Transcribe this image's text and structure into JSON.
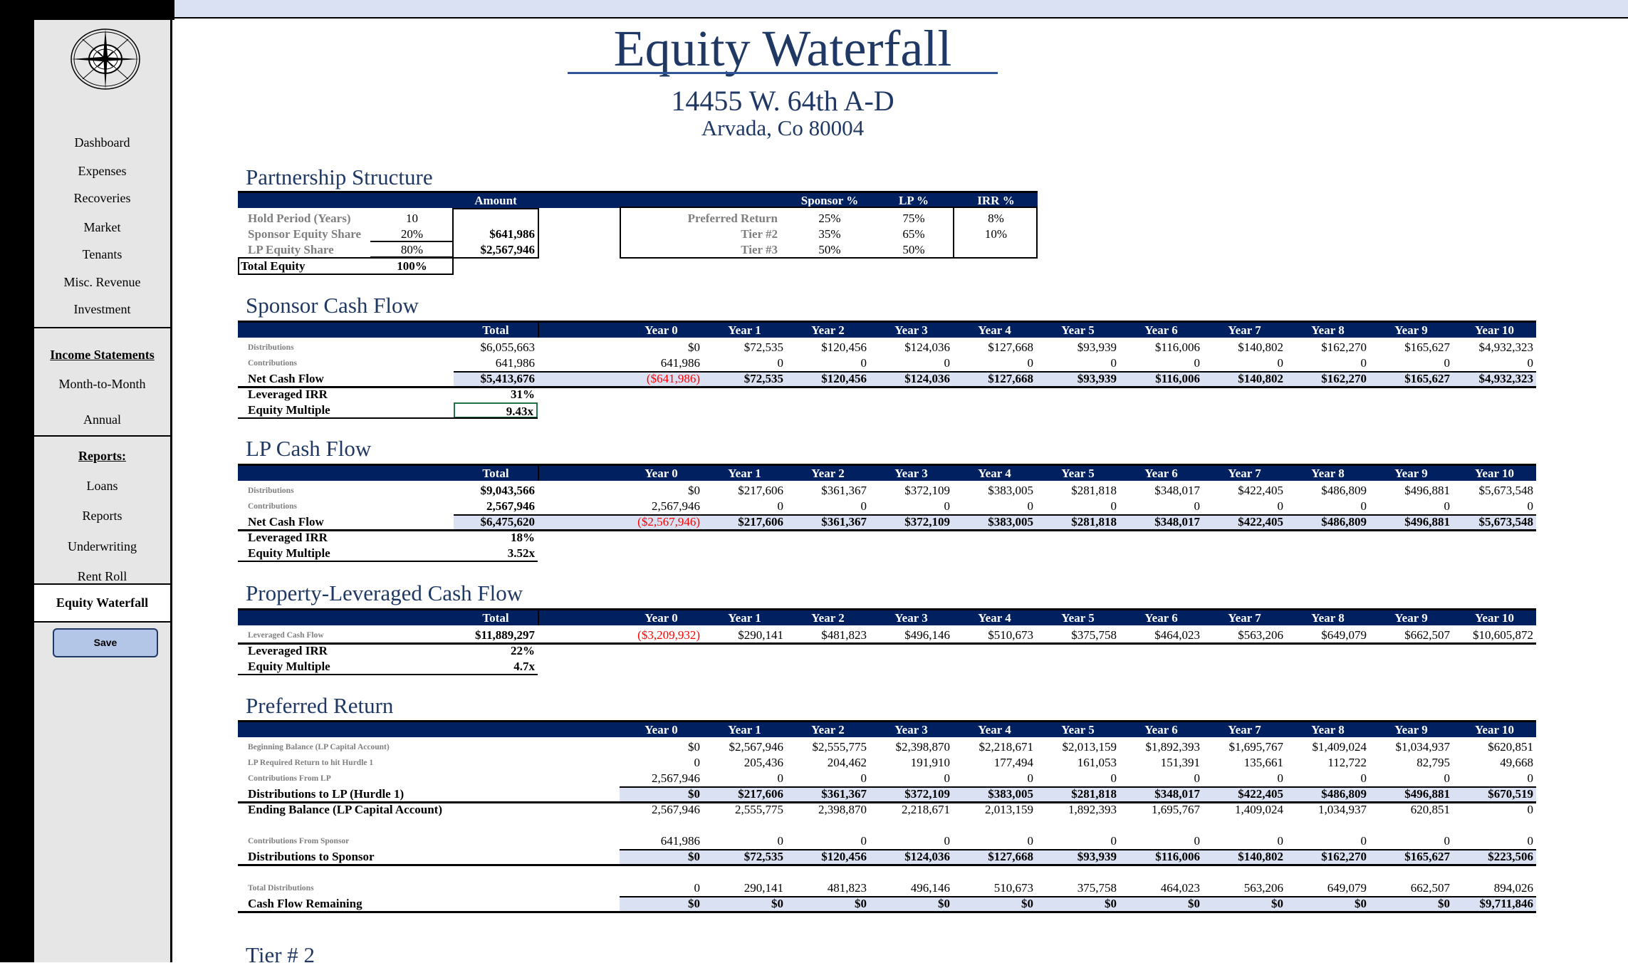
{
  "sidebar": {
    "items": [
      {
        "label": "Dashboard",
        "type": "link"
      },
      {
        "label": "Expenses",
        "type": "link"
      },
      {
        "label": "Recoveries",
        "type": "link"
      },
      {
        "label": "Market",
        "type": "link"
      },
      {
        "label": "Tenants",
        "type": "link"
      },
      {
        "label": "Misc. Revenue",
        "type": "link"
      },
      {
        "label": "Investment",
        "type": "link"
      },
      {
        "label": "Income Statements",
        "type": "head"
      },
      {
        "label": "Month-to-Month",
        "type": "link"
      },
      {
        "label": "Annual",
        "type": "link"
      },
      {
        "label": "Reports:",
        "type": "head"
      },
      {
        "label": "Loans",
        "type": "link"
      },
      {
        "label": "Reports",
        "type": "link"
      },
      {
        "label": "Underwriting",
        "type": "link"
      },
      {
        "label": "Rent Roll",
        "type": "link"
      },
      {
        "label": "Equity Waterfall",
        "type": "active"
      }
    ],
    "save_label": "Save"
  },
  "header": {
    "title": "Equity Waterfall",
    "address": "14455 W. 64th A-D",
    "city": "Arvada, Co 80004"
  },
  "colors": {
    "navy": "#002060",
    "shade": "#dae1f2",
    "title": "#1f3864",
    "negative": "#ff0000"
  },
  "partnership": {
    "title": "Partnership Structure",
    "amount_header": "Amount",
    "sponsor_header": "Sponsor %",
    "lp_header": "LP %",
    "irr_header": "IRR %",
    "left": [
      {
        "label": "Hold Period (Years)",
        "value": "10",
        "amount": ""
      },
      {
        "label": "Sponsor Equity Share",
        "value": "20%",
        "amount": "$641,986"
      },
      {
        "label": "LP Equity Share",
        "value": "80%",
        "amount": "$2,567,946"
      }
    ],
    "total": {
      "label": "Total Equity",
      "value": "100%"
    },
    "right": [
      {
        "label": "Preferred Return",
        "sponsor": "25%",
        "lp": "75%",
        "irr": "8%"
      },
      {
        "label": "Tier #2",
        "sponsor": "35%",
        "lp": "65%",
        "irr": "10%"
      },
      {
        "label": "Tier #3",
        "sponsor": "50%",
        "lp": "50%",
        "irr": ""
      }
    ]
  },
  "years": [
    "Year 0",
    "Year 1",
    "Year 2",
    "Year 3",
    "Year 4",
    "Year 5",
    "Year 6",
    "Year 7",
    "Year 8",
    "Year 9",
    "Year 10"
  ],
  "total_header": "Total",
  "sponsor_cf": {
    "title": "Sponsor Cash Flow",
    "rows": [
      {
        "label": "Distributions",
        "style": "minor",
        "total": "$6,055,663",
        "values": [
          "$0",
          "$72,535",
          "$120,456",
          "$124,036",
          "$127,668",
          "$93,939",
          "$116,006",
          "$140,802",
          "$162,270",
          "$165,627",
          "$4,932,323"
        ]
      },
      {
        "label": "Contributions",
        "style": "minor",
        "total": "641,986",
        "values": [
          "641,986",
          "0",
          "0",
          "0",
          "0",
          "0",
          "0",
          "0",
          "0",
          "0",
          "0"
        ]
      },
      {
        "label": "Net Cash Flow",
        "style": "net",
        "total": "$5,413,676",
        "values": [
          "($641,986)",
          "$72,535",
          "$120,456",
          "$124,036",
          "$127,668",
          "$93,939",
          "$116,006",
          "$140,802",
          "$162,270",
          "$165,627",
          "$4,932,323"
        ]
      },
      {
        "label": "Leveraged IRR",
        "style": "metric",
        "total": "31%"
      },
      {
        "label": "Equity Multiple",
        "style": "metric-last",
        "total": "9.43x",
        "selected": true
      }
    ]
  },
  "lp_cf": {
    "title": "LP Cash Flow",
    "rows": [
      {
        "label": "Distributions",
        "style": "minor",
        "total": "$9,043,566",
        "total_bold": true,
        "values": [
          "$0",
          "$217,606",
          "$361,367",
          "$372,109",
          "$383,005",
          "$281,818",
          "$348,017",
          "$422,405",
          "$486,809",
          "$496,881",
          "$5,673,548"
        ]
      },
      {
        "label": "Contributions",
        "style": "minor",
        "total": "2,567,946",
        "total_bold": true,
        "values": [
          "2,567,946",
          "0",
          "0",
          "0",
          "0",
          "0",
          "0",
          "0",
          "0",
          "0",
          "0"
        ]
      },
      {
        "label": "Net Cash Flow",
        "style": "net",
        "total": "$6,475,620",
        "values": [
          "($2,567,946)",
          "$217,606",
          "$361,367",
          "$372,109",
          "$383,005",
          "$281,818",
          "$348,017",
          "$422,405",
          "$486,809",
          "$496,881",
          "$5,673,548"
        ]
      },
      {
        "label": "Leveraged IRR",
        "style": "metric",
        "total": "18%"
      },
      {
        "label": "Equity Multiple",
        "style": "metric-last",
        "total": "3.52x"
      }
    ]
  },
  "property_cf": {
    "title": "Property-Leveraged Cash Flow",
    "rows": [
      {
        "label": "Leveraged Cash Flow",
        "style": "minor-thick",
        "total": "$11,889,297",
        "total_bold": true,
        "values": [
          "($3,209,932)",
          "$290,141",
          "$481,823",
          "$496,146",
          "$510,673",
          "$375,758",
          "$464,023",
          "$563,206",
          "$649,079",
          "$662,507",
          "$10,605,872"
        ]
      },
      {
        "label": "Leveraged IRR",
        "style": "metric",
        "total": "22%"
      },
      {
        "label": "Equity Multiple",
        "style": "metric-last",
        "total": "4.7x"
      }
    ]
  },
  "preferred_return": {
    "title": "Preferred Return",
    "rows": [
      {
        "label": "Beginning Balance (LP Capital Account)",
        "style": "minor",
        "values": [
          "$0",
          "$2,567,946",
          "$2,555,775",
          "$2,398,870",
          "$2,218,671",
          "$2,013,159",
          "$1,892,393",
          "$1,695,767",
          "$1,409,024",
          "$1,034,937",
          "$620,851"
        ]
      },
      {
        "label": "LP Required Return to hit Hurdle 1",
        "style": "minor",
        "values": [
          "0",
          "205,436",
          "204,462",
          "191,910",
          "177,494",
          "161,053",
          "151,391",
          "135,661",
          "112,722",
          "82,795",
          "49,668"
        ]
      },
      {
        "label": "Contributions From LP",
        "style": "minor",
        "values": [
          "2,567,946",
          "0",
          "0",
          "0",
          "0",
          "0",
          "0",
          "0",
          "0",
          "0",
          "0"
        ]
      },
      {
        "label": "Distributions to LP (Hurdle 1)",
        "style": "net",
        "values": [
          "$0",
          "$217,606",
          "$361,367",
          "$372,109",
          "$383,005",
          "$281,818",
          "$348,017",
          "$422,405",
          "$486,809",
          "$496,881",
          "$670,519"
        ]
      },
      {
        "label": "Ending Balance (LP Capital Account)",
        "style": "plain-bold-label",
        "values": [
          "2,567,946",
          "2,555,775",
          "2,398,870",
          "2,218,671",
          "2,013,159",
          "1,892,393",
          "1,695,767",
          "1,409,024",
          "1,034,937",
          "620,851",
          "0"
        ]
      },
      {
        "blank": true
      },
      {
        "label": "Contributions From Sponsor",
        "style": "minor",
        "values": [
          "641,986",
          "0",
          "0",
          "0",
          "0",
          "0",
          "0",
          "0",
          "0",
          "0",
          "0"
        ]
      },
      {
        "label": "Distributions to Sponsor",
        "style": "net",
        "values": [
          "$0",
          "$72,535",
          "$120,456",
          "$124,036",
          "$127,668",
          "$93,939",
          "$116,006",
          "$140,802",
          "$162,270",
          "$165,627",
          "$223,506"
        ]
      },
      {
        "blank": true
      },
      {
        "label": "Total Distributions",
        "style": "minor",
        "values": [
          "0",
          "290,141",
          "481,823",
          "496,146",
          "510,673",
          "375,758",
          "464,023",
          "563,206",
          "649,079",
          "662,507",
          "894,026"
        ]
      },
      {
        "label": "Cash Flow Remaining",
        "style": "net",
        "values": [
          "$0",
          "$0",
          "$0",
          "$0",
          "$0",
          "$0",
          "$0",
          "$0",
          "$0",
          "$0",
          "$9,711,846"
        ]
      }
    ]
  },
  "tier2": {
    "title": "Tier # 2"
  }
}
